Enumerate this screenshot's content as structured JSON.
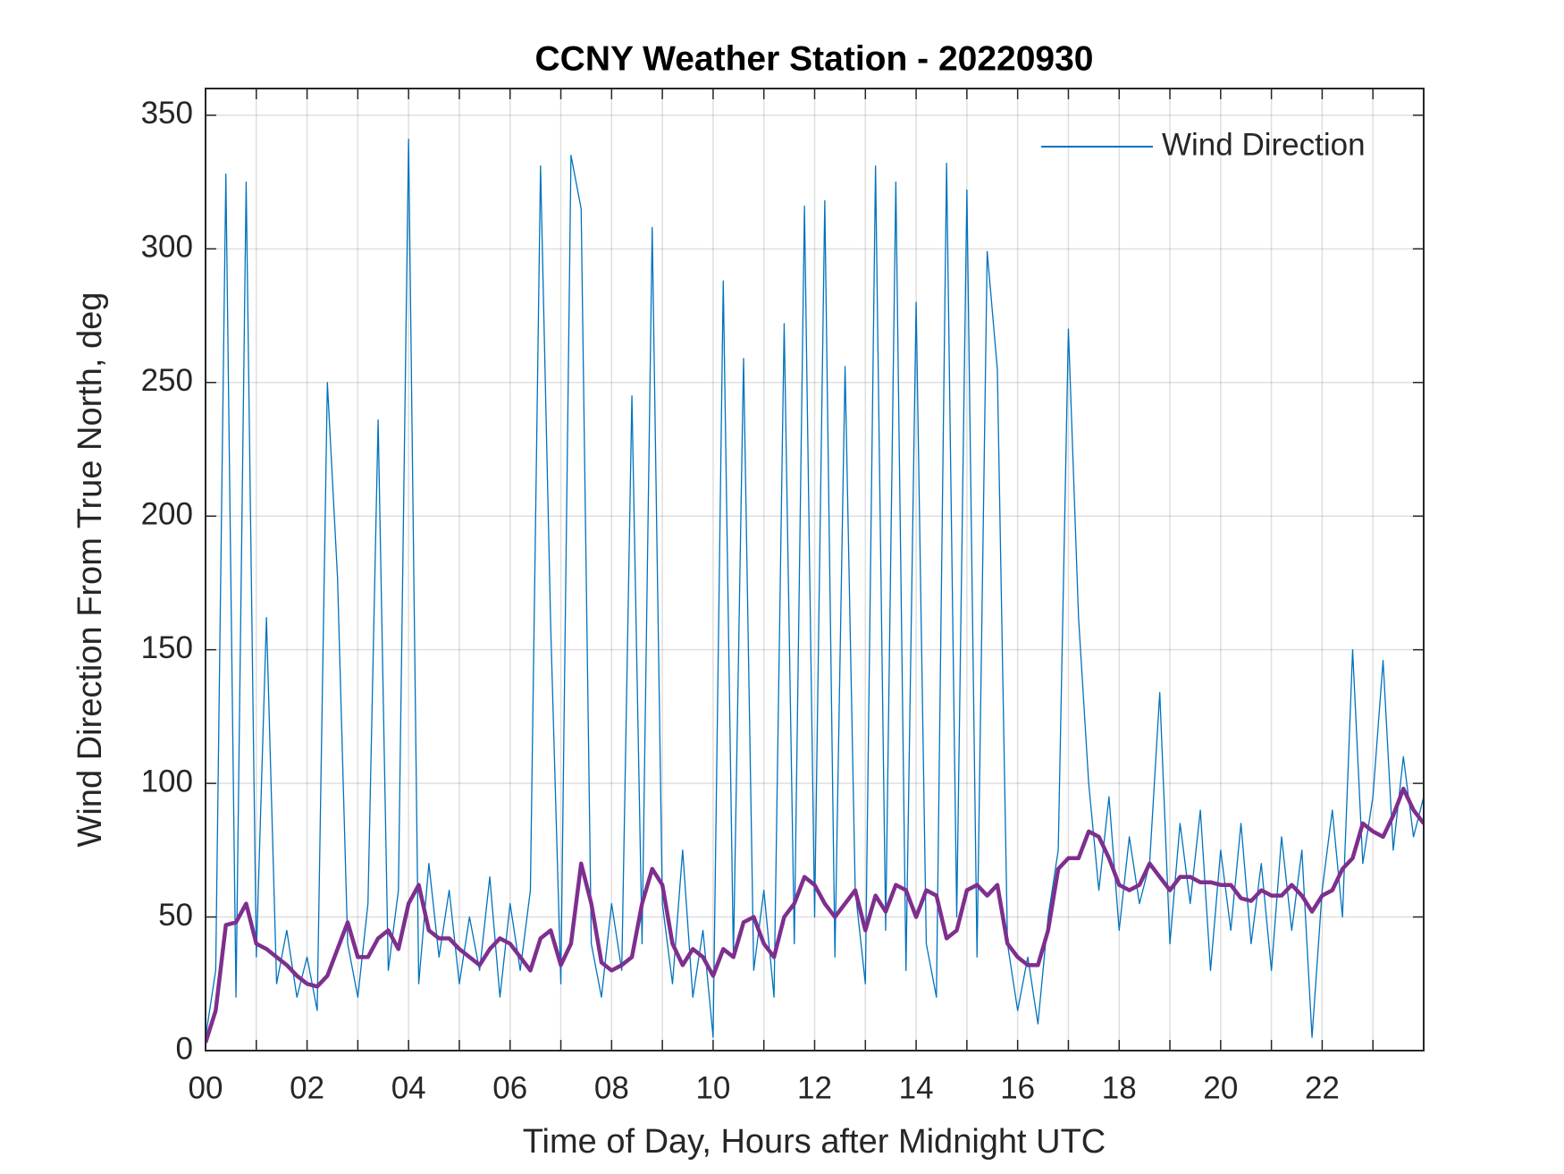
{
  "chart_data": {
    "type": "line",
    "title": "CCNY Weather Station - 20220930",
    "xlabel": "Time of Day, Hours after Midnight UTC",
    "ylabel": "Wind Direction From True North, deg",
    "x": [
      0,
      0.2,
      0.4,
      0.6,
      0.8,
      1,
      1.2,
      1.4,
      1.6,
      1.8,
      2,
      2.2,
      2.4,
      2.6,
      2.8,
      3,
      3.2,
      3.4,
      3.6,
      3.8,
      4,
      4.2,
      4.4,
      4.6,
      4.8,
      5,
      5.2,
      5.4,
      5.6,
      5.8,
      6,
      6.2,
      6.4,
      6.6,
      6.8,
      7,
      7.2,
      7.4,
      7.6,
      7.8,
      8,
      8.2,
      8.4,
      8.6,
      8.8,
      9,
      9.2,
      9.4,
      9.6,
      9.8,
      10,
      10.2,
      10.4,
      10.6,
      10.8,
      11,
      11.2,
      11.4,
      11.6,
      11.8,
      12,
      12.2,
      12.4,
      12.6,
      12.8,
      13,
      13.2,
      13.4,
      13.6,
      13.8,
      14,
      14.2,
      14.4,
      14.6,
      14.8,
      15,
      15.2,
      15.4,
      15.6,
      15.8,
      16,
      16.2,
      16.4,
      16.6,
      16.8,
      17,
      17.2,
      17.4,
      17.6,
      17.8,
      18,
      18.2,
      18.4,
      18.6,
      18.8,
      19,
      19.2,
      19.4,
      19.6,
      19.8,
      20,
      20.2,
      20.4,
      20.6,
      20.8,
      21,
      21.2,
      21.4,
      21.6,
      21.8,
      22,
      22.2,
      22.4,
      22.6,
      22.8,
      23,
      23.2,
      23.4,
      23.6,
      23.8,
      24
    ],
    "series": [
      {
        "name": "Wind Direction",
        "color": "#0072BD",
        "width": 1.3,
        "values": [
          5,
          30,
          328,
          20,
          325,
          35,
          162,
          25,
          45,
          20,
          35,
          15,
          250,
          177,
          40,
          20,
          55,
          236,
          30,
          60,
          341,
          25,
          70,
          35,
          60,
          25,
          50,
          30,
          65,
          20,
          55,
          30,
          60,
          331,
          159,
          25,
          335,
          315,
          40,
          20,
          55,
          30,
          245,
          40,
          308,
          55,
          25,
          75,
          20,
          45,
          5,
          288,
          35,
          259,
          30,
          60,
          20,
          272,
          40,
          316,
          50,
          318,
          35,
          256,
          60,
          25,
          331,
          45,
          325,
          30,
          280,
          40,
          20,
          332,
          50,
          322,
          35,
          299,
          255,
          40,
          15,
          35,
          10,
          50,
          75,
          270,
          162,
          100,
          60,
          95,
          45,
          80,
          55,
          70,
          134,
          40,
          85,
          55,
          90,
          30,
          75,
          45,
          85,
          40,
          70,
          30,
          80,
          45,
          75,
          5,
          60,
          90,
          50,
          150,
          70,
          95,
          146,
          75,
          110,
          80,
          95
        ]
      },
      {
        "color": "#7E2F8E",
        "width": 4.5,
        "values": [
          3,
          15,
          47,
          48,
          55,
          40,
          38,
          35,
          32,
          28,
          25,
          24,
          28,
          38,
          48,
          35,
          35,
          42,
          45,
          38,
          55,
          62,
          45,
          42,
          42,
          38,
          35,
          32,
          38,
          42,
          40,
          35,
          30,
          42,
          45,
          32,
          40,
          70,
          55,
          33,
          30,
          32,
          35,
          55,
          68,
          62,
          40,
          32,
          38,
          35,
          28,
          38,
          35,
          48,
          50,
          40,
          35,
          50,
          55,
          65,
          62,
          55,
          50,
          55,
          60,
          45,
          58,
          52,
          62,
          60,
          50,
          60,
          58,
          42,
          45,
          60,
          62,
          58,
          62,
          40,
          35,
          32,
          32,
          45,
          68,
          72,
          72,
          82,
          80,
          72,
          62,
          60,
          62,
          70,
          65,
          60,
          65,
          65,
          63,
          63,
          62,
          62,
          57,
          56,
          60,
          58,
          58,
          62,
          58,
          52,
          58,
          60,
          68,
          72,
          85,
          82,
          80,
          88,
          98,
          90,
          85
        ]
      }
    ],
    "xlim": [
      0,
      24
    ],
    "ylim": [
      0,
      360
    ],
    "xticks": [
      {
        "value": 0,
        "label": "00"
      },
      {
        "value": 2,
        "label": "02"
      },
      {
        "value": 4,
        "label": "04"
      },
      {
        "value": 6,
        "label": "06"
      },
      {
        "value": 8,
        "label": "08"
      },
      {
        "value": 10,
        "label": "10"
      },
      {
        "value": 12,
        "label": "12"
      },
      {
        "value": 14,
        "label": "14"
      },
      {
        "value": 16,
        "label": "16"
      },
      {
        "value": 18,
        "label": "18"
      },
      {
        "value": 20,
        "label": "20"
      },
      {
        "value": 22,
        "label": "22"
      }
    ],
    "xminorticks": [
      1,
      3,
      5,
      7,
      9,
      11,
      13,
      15,
      17,
      19,
      21,
      23
    ],
    "yticks": [
      0,
      50,
      100,
      150,
      200,
      250,
      300,
      350
    ],
    "grid": true,
    "legend": "upper right"
  }
}
